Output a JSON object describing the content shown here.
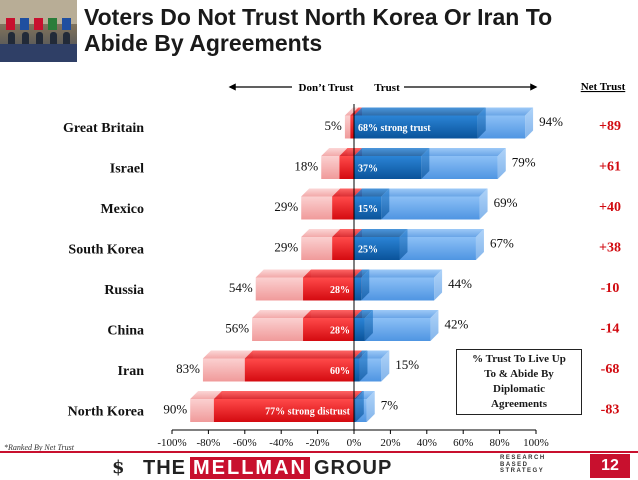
{
  "header": {
    "title_line1": "Voters Do Not Trust North Korea Or Iran To",
    "title_line2": "Abide By Agreements"
  },
  "legend_box": {
    "line1": "% Trust To Live Up",
    "line2": "To & Abide By",
    "line3": "Diplomatic",
    "line4": "Agreements"
  },
  "footnote": "*Ranked By Net Trust",
  "footer": {
    "logo_left": "THE",
    "logo_mid": "MELLMAN",
    "logo_right": "GROUP",
    "sub1": "RESEARCH",
    "sub2": "BASED",
    "sub3": "STRATEGY",
    "page_number": "12"
  },
  "colors": {
    "strong_distrust": "#e8141b",
    "distrust": "#f6b2b2",
    "strong_trust": "#0b64b4",
    "trust": "#66a8ee",
    "axis": "#000000"
  },
  "chart_data": {
    "type": "bar",
    "orientation": "horizontal-diverging",
    "categories": [
      "Great Britain",
      "Israel",
      "Mexico",
      "South Korea",
      "Russia",
      "China",
      "Iran",
      "North Korea"
    ],
    "distrust_total": [
      5,
      18,
      29,
      29,
      54,
      56,
      83,
      90
    ],
    "strong_distrust": [
      2,
      8,
      12,
      12,
      28,
      28,
      60,
      77
    ],
    "trust_total": [
      94,
      79,
      69,
      67,
      44,
      42,
      15,
      7
    ],
    "strong_trust": [
      68,
      37,
      15,
      25,
      4,
      6,
      3,
      1
    ],
    "net_trust": [
      "+89",
      "+61",
      "+40",
      "+38",
      "-10",
      "-14",
      "-68",
      "-83"
    ],
    "distrust_labels": [
      "5%",
      "18%",
      "29%",
      "29%",
      "54%",
      "56%",
      "83%",
      "90%"
    ],
    "trust_labels": [
      "94%",
      "79%",
      "69%",
      "67%",
      "44%",
      "42%",
      "15%",
      "7%"
    ],
    "inner_labels": [
      {
        "row": 0,
        "side": "trust",
        "text": "68% strong trust"
      },
      {
        "row": 1,
        "side": "trust",
        "text": "37%"
      },
      {
        "row": 2,
        "side": "trust",
        "text": "15%"
      },
      {
        "row": 3,
        "side": "trust",
        "text": "25%"
      },
      {
        "row": 4,
        "side": "distrust",
        "text": "28%"
      },
      {
        "row": 5,
        "side": "distrust",
        "text": "28%"
      },
      {
        "row": 6,
        "side": "distrust",
        "text": "60%"
      },
      {
        "row": 7,
        "side": "distrust",
        "text": "77%  strong distrust"
      }
    ],
    "header_left": "Don’t Trust",
    "header_right": "Trust",
    "net_header": "Net Trust",
    "xlim": [
      -100,
      100
    ],
    "xticks": [
      -100,
      -80,
      -60,
      -40,
      -20,
      0,
      20,
      40,
      60,
      80,
      100
    ],
    "xtick_labels": [
      "-100%",
      "-80%",
      "-60%",
      "-40%",
      "-20%",
      "0%",
      "20%",
      "40%",
      "60%",
      "80%",
      "100%"
    ]
  }
}
